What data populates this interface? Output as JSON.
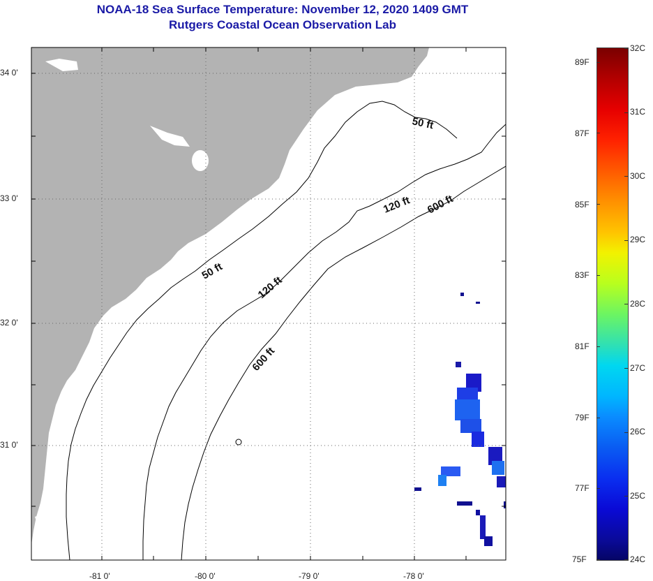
{
  "title": {
    "line1": "NOAA-18 Sea Surface Temperature:  November 12, 2020 1409 GMT",
    "line2": "Rutgers Coastal Ocean Observation Lab"
  },
  "map": {
    "lon_range": [
      -81.65,
      -77.2
    ],
    "lat_range": [
      30.2,
      34.2
    ],
    "lat_ticks": [
      {
        "value": 34,
        "label": "34 0'"
      },
      {
        "value": 33,
        "label": "33 0'"
      },
      {
        "value": 32,
        "label": "32 0'"
      },
      {
        "value": 31,
        "label": "31 0'"
      }
    ],
    "lon_ticks": [
      {
        "value": -81,
        "label": "-81 0'"
      },
      {
        "value": -80,
        "label": "-80 0'"
      },
      {
        "value": -79,
        "label": "-79 0'"
      },
      {
        "value": -78,
        "label": "-78 0'"
      }
    ],
    "depth_labels": [
      "50 ft",
      "50 ft",
      "120 ft",
      "120 ft",
      "600 ft",
      "600 ft"
    ],
    "colors": {
      "land": "#b3b3b3",
      "ocean": "#ffffff",
      "contour": "#000000",
      "gridline": "#555555"
    }
  },
  "colorbar": {
    "fahrenheit_labels": [
      "89F",
      "87F",
      "85F",
      "83F",
      "81F",
      "79F",
      "77F",
      "75F"
    ],
    "celsius_labels": [
      "32C",
      "31C",
      "30C",
      "29C",
      "28C",
      "27C",
      "26C",
      "25C",
      "24C"
    ],
    "range_c": [
      24,
      32
    ]
  }
}
